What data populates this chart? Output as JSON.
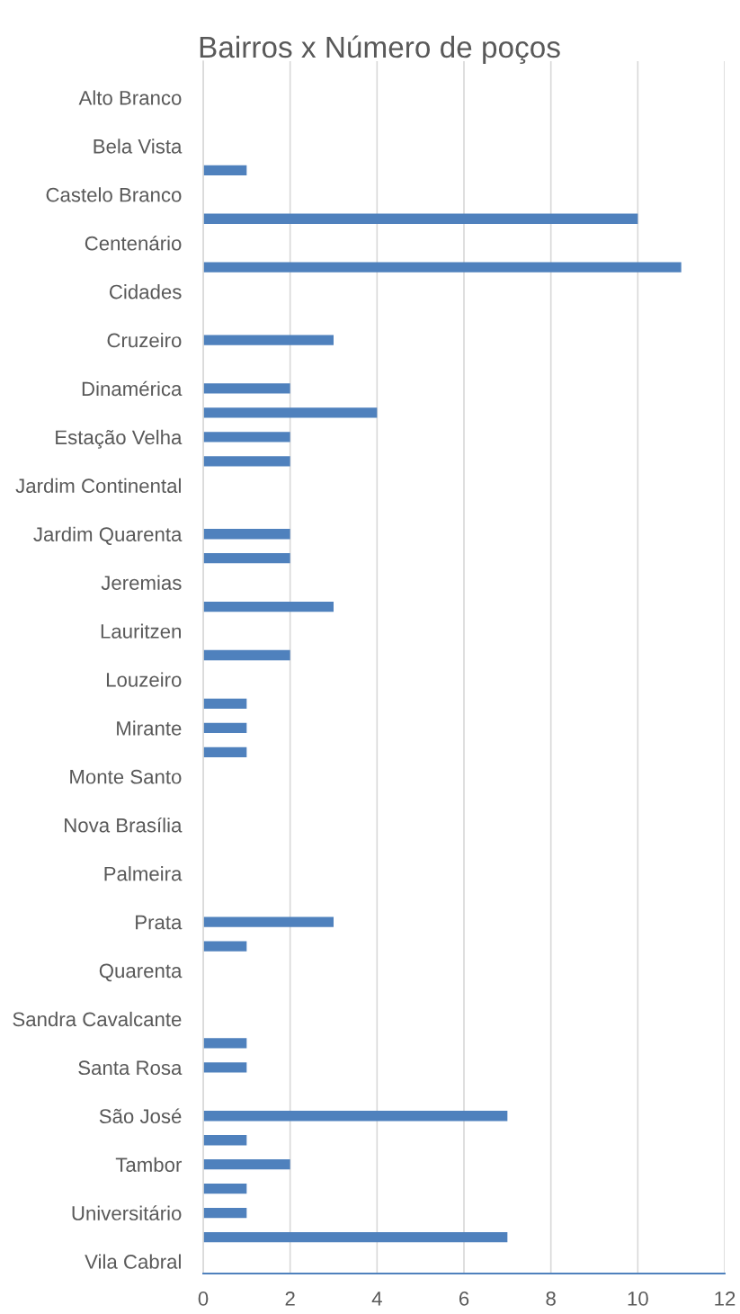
{
  "chart_data": {
    "type": "bar",
    "orientation": "horizontal",
    "title": "Bairros x Número de poços",
    "categories": [
      null,
      "Alto Branco",
      null,
      "Bela Vista",
      null,
      "Castelo Branco",
      null,
      "Centenário",
      null,
      "Cidades",
      null,
      "Cruzeiro",
      null,
      "Dinamérica",
      null,
      "Estação Velha",
      null,
      "Jardim Continental",
      null,
      "Jardim Quarenta",
      null,
      "Jeremias",
      null,
      "Lauritzen",
      null,
      "Louzeiro",
      null,
      "Mirante",
      null,
      "Monte Santo",
      null,
      "Nova Brasília",
      null,
      "Palmeira",
      null,
      "Prata",
      null,
      "Quarenta",
      null,
      "Sandra Cavalcante",
      null,
      "Santa Rosa",
      null,
      "São José",
      null,
      "Tambor",
      null,
      "Universitário",
      null,
      "Vila Cabral"
    ],
    "values": [
      null,
      null,
      null,
      null,
      1,
      null,
      10,
      null,
      11,
      null,
      null,
      3,
      null,
      2,
      4,
      2,
      2,
      null,
      null,
      2,
      2,
      null,
      3,
      null,
      2,
      null,
      1,
      1,
      1,
      null,
      null,
      null,
      null,
      null,
      null,
      3,
      1,
      null,
      null,
      null,
      1,
      1,
      null,
      7,
      1,
      2,
      1,
      1,
      7,
      null
    ],
    "color": "#4f81bd",
    "xlim": [
      0,
      12
    ],
    "xticks": [
      0,
      2,
      4,
      6,
      8,
      10,
      12
    ],
    "grid": "x"
  }
}
